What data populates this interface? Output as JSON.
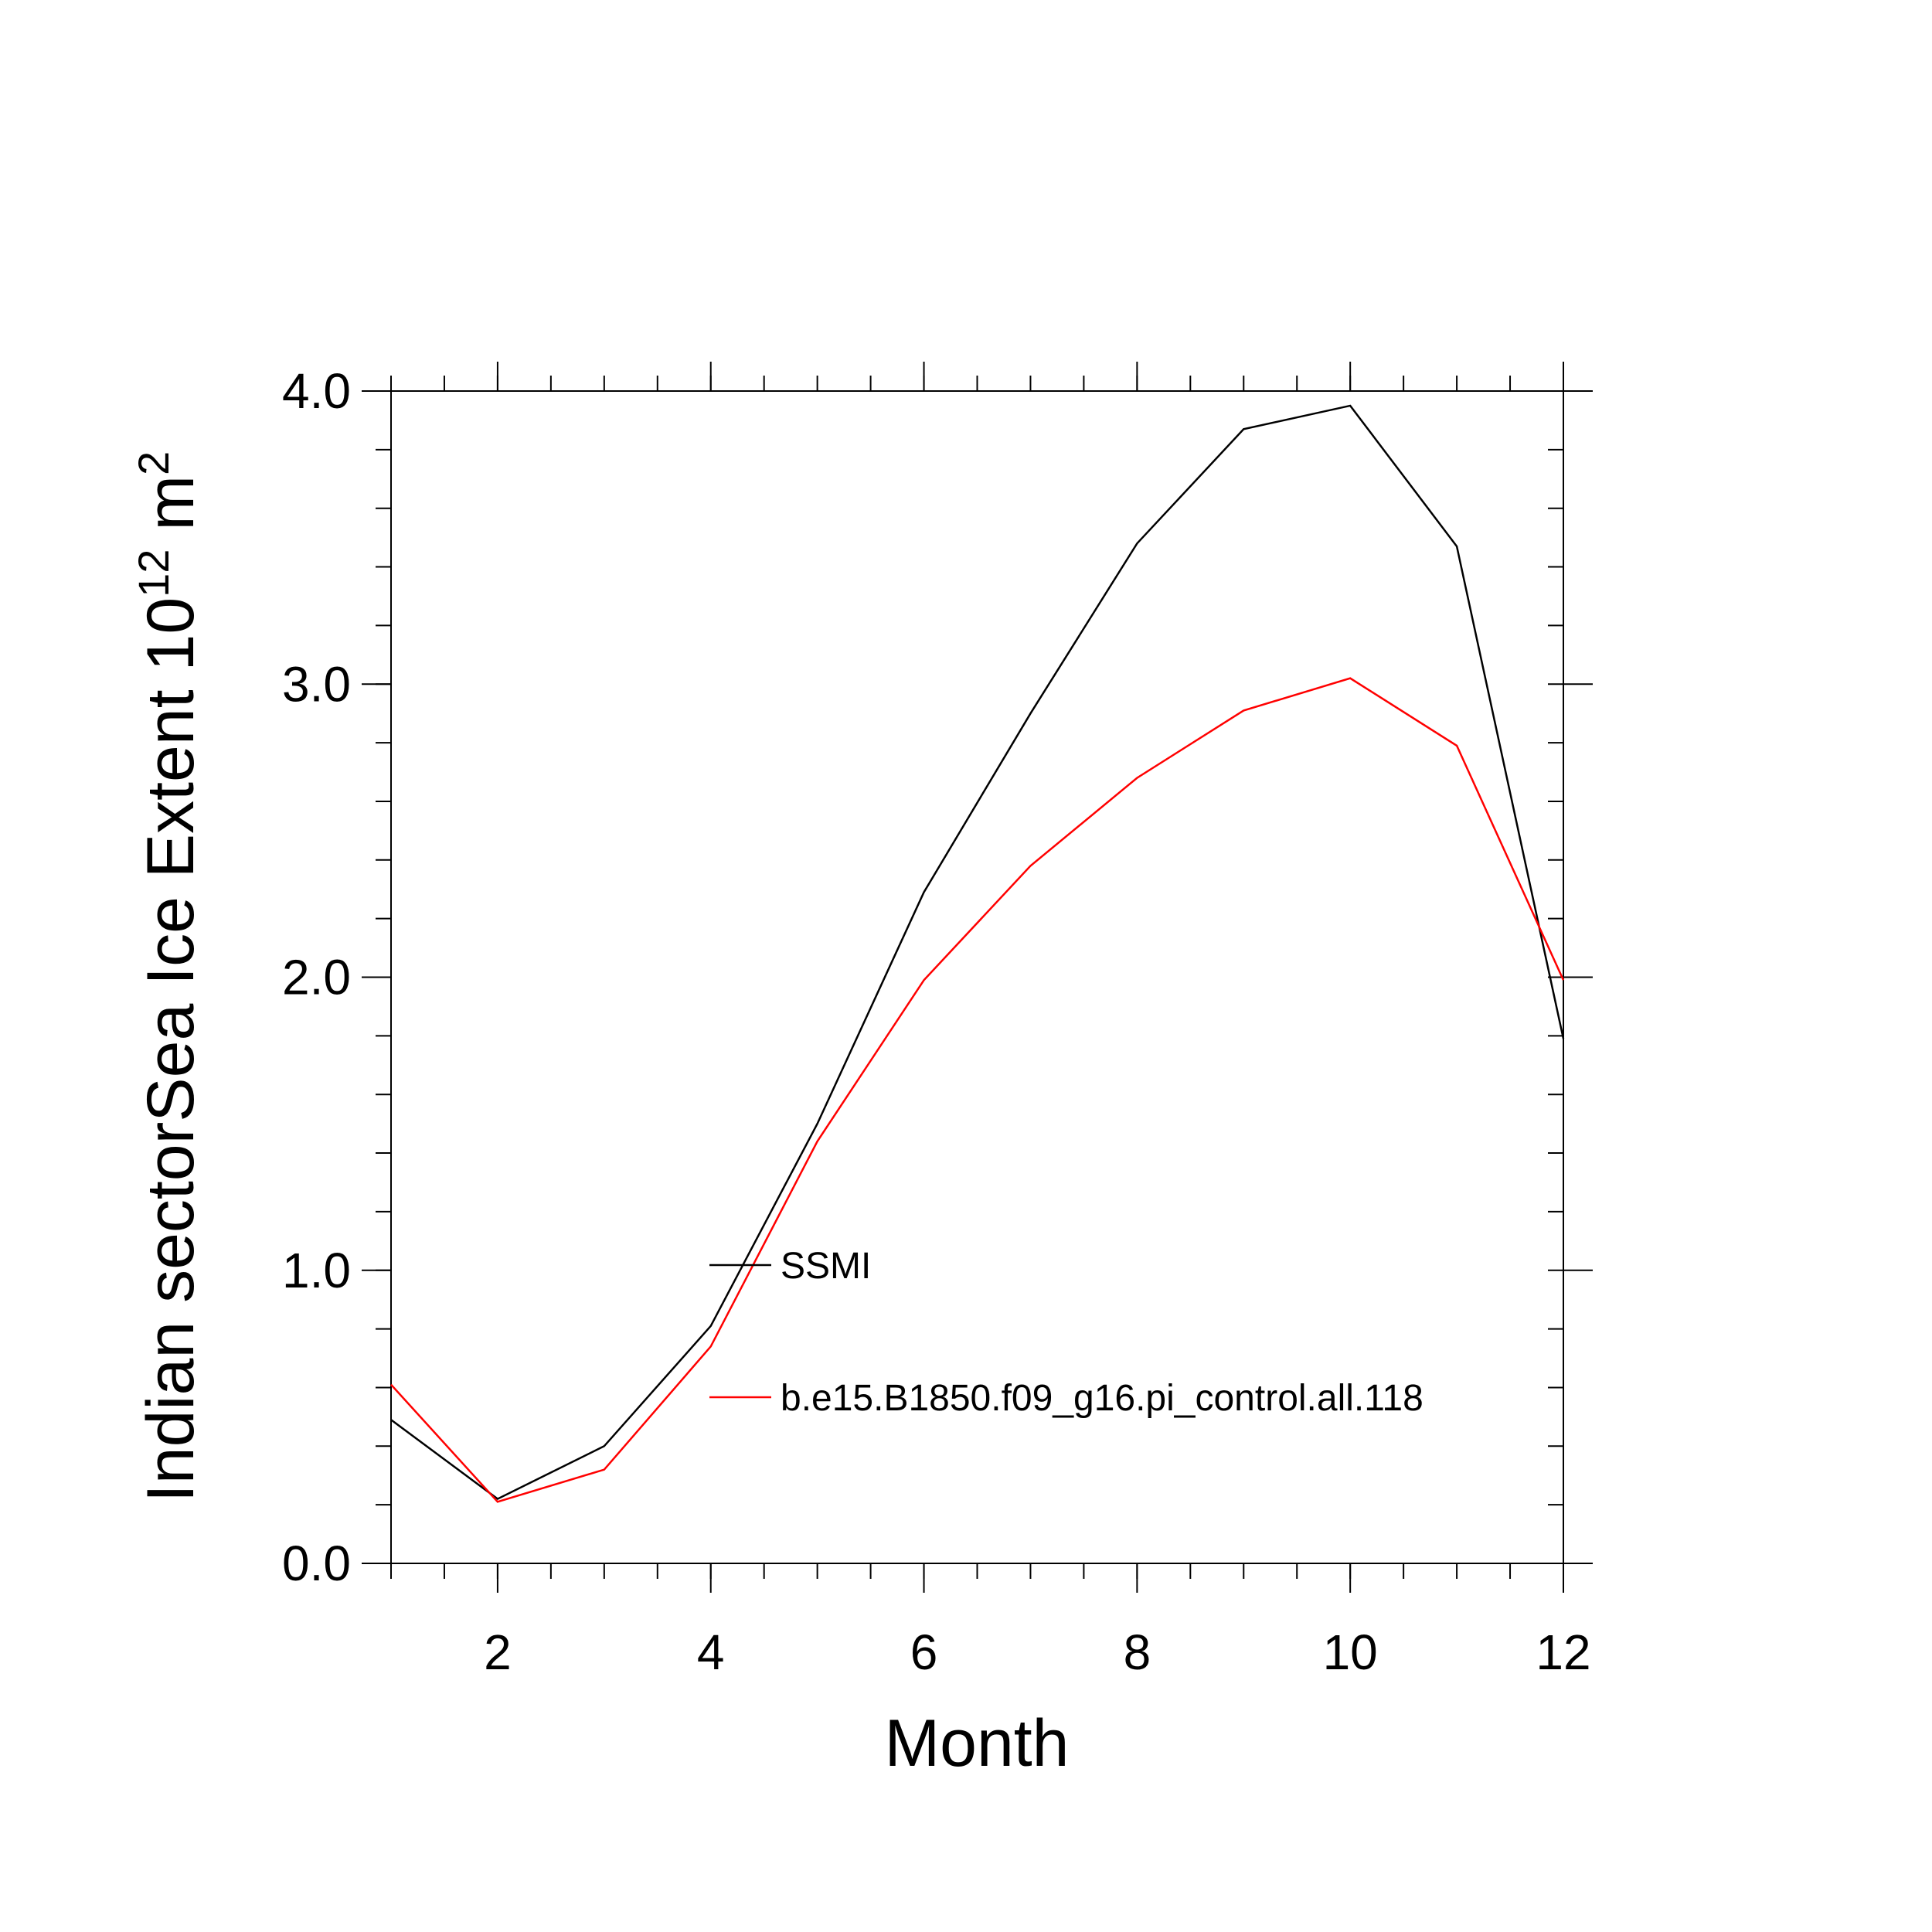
{
  "chart_data": {
    "type": "line",
    "title": "",
    "xlabel": "Month",
    "ylabel_main": "Indian sectorSea Ice Extent 10",
    "ylabel_sup": "12",
    "ylabel_unit": " m",
    "ylabel_unit_sup": "2",
    "xlim": [
      1,
      12
    ],
    "ylim": [
      0,
      4
    ],
    "x_ticks": [
      2,
      4,
      6,
      8,
      10,
      12
    ],
    "x_tick_labels": [
      "2",
      "4",
      "6",
      "8",
      "10",
      "12"
    ],
    "y_ticks": [
      0,
      1,
      2,
      3,
      4
    ],
    "y_tick_labels": [
      "0.0",
      "1.0",
      "2.0",
      "3.0",
      "4.0"
    ],
    "x_minor_step": 0.5,
    "y_minor_step": 0.2,
    "x": [
      1,
      2,
      3,
      4,
      5,
      6,
      7,
      8,
      9,
      10,
      11,
      12
    ],
    "series": [
      {
        "name": "SSMI",
        "color": "#000000",
        "values": [
          0.49,
          0.22,
          0.4,
          0.81,
          1.5,
          2.29,
          2.9,
          3.48,
          3.87,
          3.95,
          3.47,
          1.79
        ]
      },
      {
        "name": "b.e15.B1850.f09_g16.pi_control.all.118",
        "color": "#ff0000",
        "values": [
          0.61,
          0.21,
          0.32,
          0.74,
          1.44,
          1.99,
          2.38,
          2.68,
          2.91,
          3.02,
          2.79,
          1.99
        ]
      }
    ],
    "legend_position": "inside-center"
  }
}
